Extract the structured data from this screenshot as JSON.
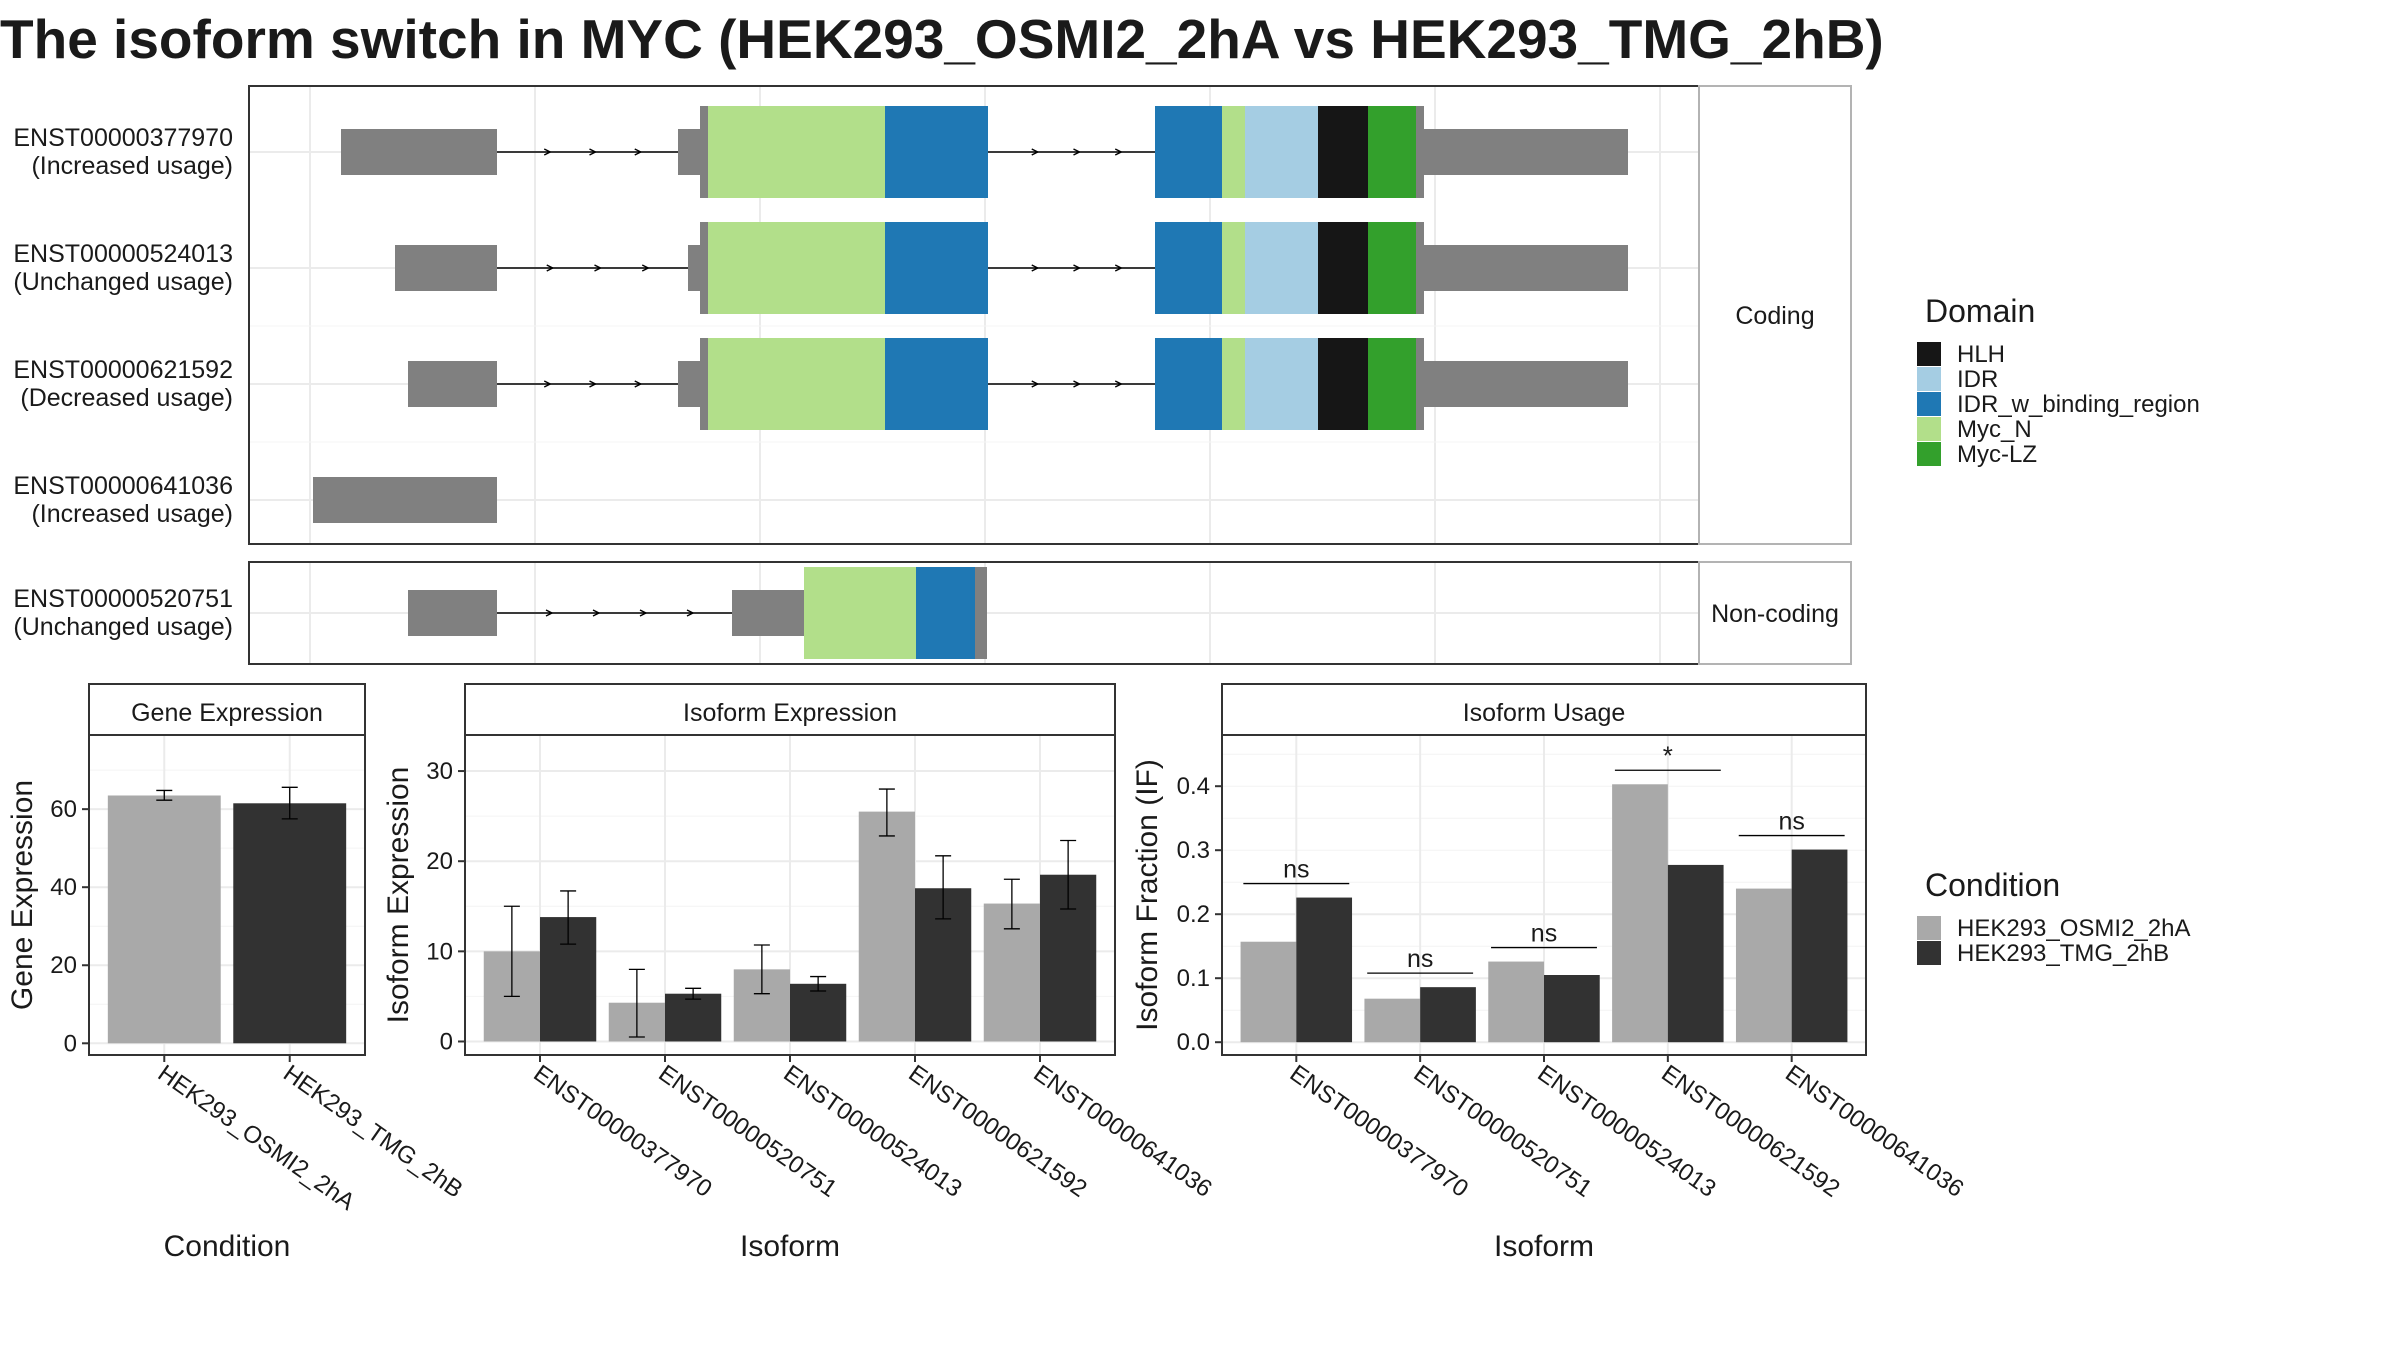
{
  "title": "The isoform switch in MYC (HEK293_OSMI2_2hA vs HEK293_TMG_2hB)",
  "colors": {
    "HLH": "#161616",
    "IDR": "#a5cde3",
    "IDR_w_binding_region": "#1f78b4",
    "Myc_N": "#b2df8a",
    "Myc-LZ": "#33a02c",
    "utr": "#808080",
    "cond_a": "#a9a9a9",
    "cond_b": "#323232"
  },
  "transcripts": {
    "coding_label": "Coding",
    "noncoding_label": "Non-coding",
    "coding": [
      {
        "id": "ENST00000377970",
        "usage": "(Increased usage)"
      },
      {
        "id": "ENST00000524013",
        "usage": "(Unchanged usage)"
      },
      {
        "id": "ENST00000621592",
        "usage": "(Decreased usage)"
      },
      {
        "id": "ENST00000641036",
        "usage": "(Increased usage)"
      }
    ],
    "noncoding": [
      {
        "id": "ENST00000520751",
        "usage": "(Unchanged usage)"
      }
    ]
  },
  "domain_legend": {
    "title": "Domain",
    "items": [
      {
        "name": "HLH",
        "color_key": "HLH"
      },
      {
        "name": "IDR",
        "color_key": "IDR"
      },
      {
        "name": "IDR_w_binding_region",
        "color_key": "IDR_w_binding_region"
      },
      {
        "name": "Myc_N",
        "color_key": "Myc_N"
      },
      {
        "name": "Myc-LZ",
        "color_key": "Myc-LZ"
      }
    ]
  },
  "condition_legend": {
    "title": "Condition",
    "items": [
      {
        "name": "HEK293_OSMI2_2hA",
        "color_key": "cond_a"
      },
      {
        "name": "HEK293_TMG_2hB",
        "color_key": "cond_b"
      }
    ]
  },
  "chart_data": [
    {
      "type": "bar",
      "title": "Gene Expression",
      "xlabel": "Condition",
      "ylabel": "Gene Expression",
      "categories": [
        "HEK293_OSMI2_2hA",
        "HEK293_TMG_2hB"
      ],
      "values": [
        63.5,
        61.5
      ],
      "err_low": [
        62.3,
        57.5
      ],
      "err_high": [
        64.8,
        65.6
      ],
      "ylim": [
        -3,
        79
      ],
      "yticks": [
        0,
        20,
        40,
        60
      ]
    },
    {
      "type": "bar",
      "title": "Isoform Expression",
      "xlabel": "Isoform",
      "ylabel": "Isoform Expression",
      "categories": [
        "ENST00000377970",
        "ENST00000520751",
        "ENST00000524013",
        "ENST00000621592",
        "ENST00000641036"
      ],
      "series": [
        {
          "name": "HEK293_OSMI2_2hA",
          "values": [
            10.0,
            4.3,
            8.0,
            25.5,
            15.3
          ],
          "err_low": [
            5.0,
            0.5,
            5.3,
            22.8,
            12.5
          ],
          "err_high": [
            15.0,
            8.0,
            10.7,
            28.0,
            18.0
          ]
        },
        {
          "name": "HEK293_TMG_2hB",
          "values": [
            13.8,
            5.3,
            6.4,
            17.0,
            18.5
          ],
          "err_low": [
            10.8,
            4.7,
            5.6,
            13.6,
            14.7
          ],
          "err_high": [
            16.7,
            5.9,
            7.2,
            20.6,
            22.3
          ]
        }
      ],
      "ylim": [
        -1.5,
        34
      ],
      "yticks": [
        0,
        10,
        20,
        30
      ]
    },
    {
      "type": "bar",
      "title": "Isoform Usage",
      "xlabel": "Isoform",
      "ylabel": "Isoform Fraction (IF)",
      "categories": [
        "ENST00000377970",
        "ENST00000520751",
        "ENST00000524013",
        "ENST00000621592",
        "ENST00000641036"
      ],
      "series": [
        {
          "name": "HEK293_OSMI2_2hA",
          "values": [
            0.157,
            0.068,
            0.126,
            0.403,
            0.24
          ]
        },
        {
          "name": "HEK293_TMG_2hB",
          "values": [
            0.226,
            0.086,
            0.105,
            0.277,
            0.301
          ]
        }
      ],
      "significance": [
        "ns",
        "ns",
        "ns",
        "*",
        "ns"
      ],
      "ylim": [
        -0.02,
        0.48
      ],
      "yticks": [
        0.0,
        0.1,
        0.2,
        0.3,
        0.4
      ],
      "ytick_labels": [
        "0.0",
        "0.1",
        "0.2",
        "0.3",
        "0.4"
      ]
    }
  ]
}
